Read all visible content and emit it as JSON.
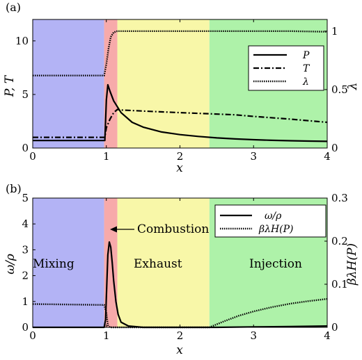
{
  "chart_data": [
    {
      "type": "line",
      "panel_label": "(a)",
      "xlabel": "x",
      "ylabel": "P, T",
      "y2label": "λ",
      "xlim": [
        0,
        4
      ],
      "ylim": [
        0,
        12
      ],
      "y2lim": [
        0,
        1.1
      ],
      "xticks": [
        "0",
        "1",
        "2",
        "3",
        "4"
      ],
      "yticks": [
        "0",
        "5",
        "10"
      ],
      "y2ticks": [
        "0",
        "0.5",
        "1"
      ],
      "regions": [
        {
          "from": 0,
          "to": 0.97,
          "color": "#b3b3f5"
        },
        {
          "from": 0.97,
          "to": 1.15,
          "color": "#f7aaaa"
        },
        {
          "from": 1.15,
          "to": 2.4,
          "color": "#f8f7a8"
        },
        {
          "from": 2.4,
          "to": 4,
          "color": "#aef2a9"
        }
      ],
      "legend_position": "top-right",
      "series": [
        {
          "name": "P",
          "axis": "left",
          "style": "solid",
          "x": [
            0,
            0.98,
            1.0,
            1.02,
            1.05,
            1.1,
            1.2,
            1.35,
            1.5,
            1.75,
            2.0,
            2.25,
            2.5,
            2.75,
            3.0,
            3.25,
            3.5,
            3.75,
            4.0
          ],
          "y": [
            0.7,
            0.7,
            4.5,
            5.9,
            5.3,
            4.4,
            3.3,
            2.4,
            1.95,
            1.5,
            1.25,
            1.08,
            0.95,
            0.85,
            0.78,
            0.72,
            0.68,
            0.65,
            0.62
          ]
        },
        {
          "name": "T",
          "axis": "left",
          "style": "dashdot",
          "x": [
            0,
            0.98,
            1.0,
            1.05,
            1.1,
            1.15,
            1.2,
            1.5,
            2.0,
            2.4,
            2.75,
            3.0,
            3.5,
            4.0
          ],
          "y": [
            1.0,
            1.0,
            1.9,
            2.7,
            3.3,
            3.6,
            3.55,
            3.45,
            3.3,
            3.2,
            3.1,
            2.95,
            2.7,
            2.4
          ]
        },
        {
          "name": "λ",
          "axis": "right",
          "style": "dotted",
          "x": [
            0,
            0.97,
            1.0,
            1.03,
            1.06,
            1.1,
            1.15,
            1.2,
            1.5,
            2.0,
            2.5,
            3.0,
            3.5,
            4.0
          ],
          "y": [
            0.62,
            0.62,
            0.72,
            0.85,
            0.95,
            0.99,
            1.0,
            1.0,
            1.0,
            1.0,
            1.0,
            1.0,
            1.0,
            0.995
          ]
        }
      ]
    },
    {
      "type": "line",
      "panel_label": "(b)",
      "xlabel": "x",
      "ylabel": "ω/ρ",
      "y2label": "βλH(P)",
      "xlim": [
        0,
        4
      ],
      "ylim": [
        0,
        5
      ],
      "y2lim": [
        0,
        0.3
      ],
      "xticks": [
        "0",
        "1",
        "2",
        "3",
        "4"
      ],
      "yticks": [
        "0",
        "1",
        "2",
        "3",
        "4",
        "5"
      ],
      "y2ticks": [
        "0",
        "0.1",
        "0.2",
        "0.3"
      ],
      "regions": [
        {
          "from": 0,
          "to": 0.97,
          "color": "#b3b3f5"
        },
        {
          "from": 0.97,
          "to": 1.15,
          "color": "#f7aaaa"
        },
        {
          "from": 1.15,
          "to": 2.4,
          "color": "#f8f7a8"
        },
        {
          "from": 2.4,
          "to": 4,
          "color": "#aef2a9"
        }
      ],
      "annotations": [
        "Mixing",
        "Combustion",
        "Exhaust",
        "Injection"
      ],
      "legend_position": "top-right",
      "series": [
        {
          "name": "ω/ρ",
          "axis": "left",
          "style": "solid",
          "x": [
            0,
            0.97,
            0.99,
            1.0,
            1.02,
            1.04,
            1.06,
            1.08,
            1.1,
            1.13,
            1.16,
            1.2,
            1.3,
            1.5,
            2.0,
            2.5,
            3.0,
            3.5,
            4.0
          ],
          "y": [
            0,
            0,
            0.3,
            1.2,
            2.8,
            3.3,
            3.1,
            2.5,
            1.8,
            1.0,
            0.5,
            0.2,
            0.05,
            0,
            0,
            0,
            0.02,
            0.03,
            0.05
          ]
        },
        {
          "name": "βλH(P)",
          "axis": "right",
          "style": "dotted",
          "x": [
            0,
            0.97,
            1.0,
            1.02,
            1.05,
            1.1,
            1.5,
            2.0,
            2.4,
            2.6,
            2.8,
            3.0,
            3.25,
            3.5,
            3.75,
            4.0
          ],
          "y": [
            0.054,
            0.052,
            0.035,
            0.005,
            0,
            0,
            0,
            0,
            0,
            0.014,
            0.027,
            0.037,
            0.047,
            0.055,
            0.061,
            0.066
          ]
        }
      ]
    }
  ]
}
